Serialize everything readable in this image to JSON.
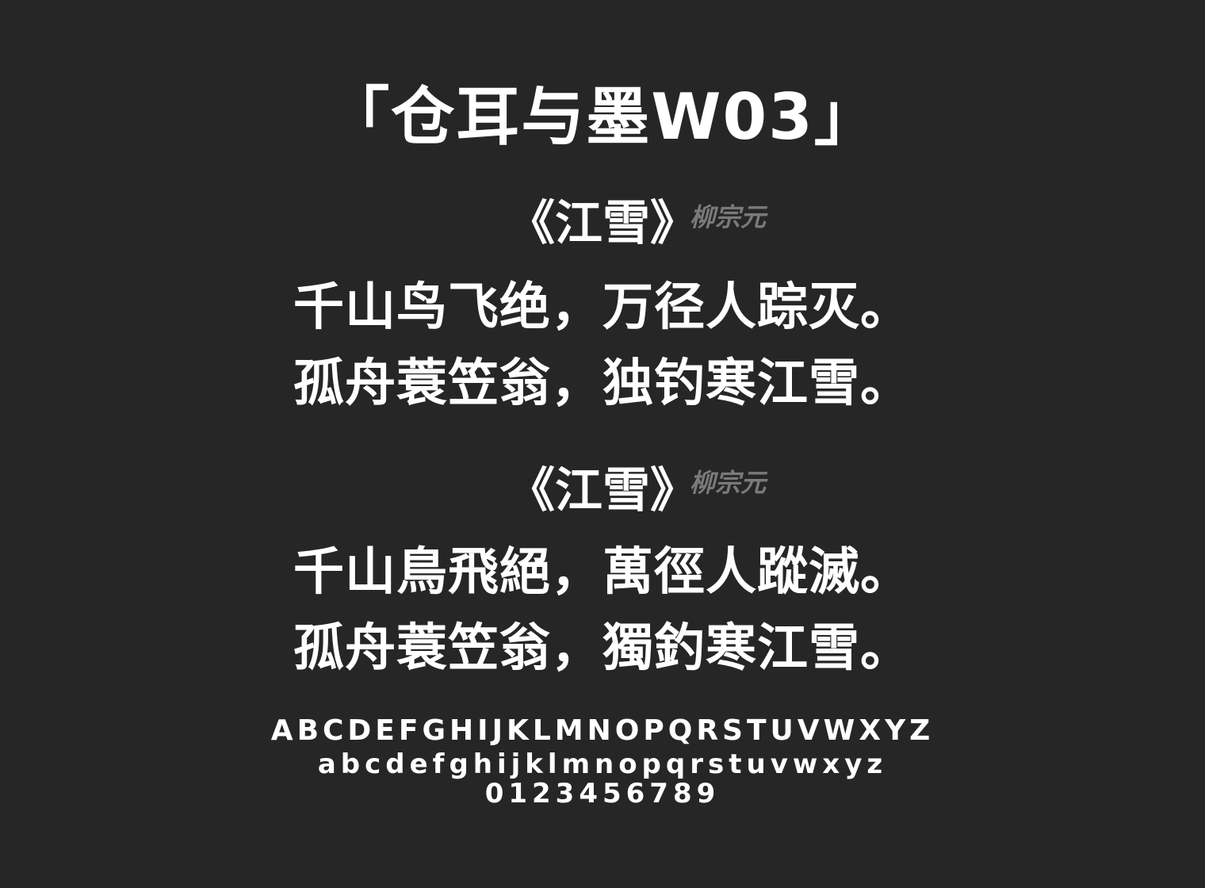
{
  "font_name": "「仓耳与墨W03」",
  "sections": [
    {
      "title": "《江雪》",
      "author": "柳宗元",
      "lines": [
        "千山鸟飞绝，万径人踪灭。",
        "孤舟蓑笠翁，独钓寒江雪。"
      ]
    },
    {
      "title": "《江雪》",
      "author": "柳宗元",
      "lines": [
        "千山鳥飛絕，萬徑人蹤滅。",
        "孤舟蓑笠翁，獨釣寒江雪。"
      ]
    }
  ],
  "glyph_samples": {
    "uppercase": "ABCDEFGHIJKLMNOPQRSTUVWXYZ",
    "lowercase": "abcdefghijklmnopqrstuvwxyz",
    "digits": "0123456789"
  },
  "colors": {
    "background": "#262626",
    "text": "#ffffff",
    "author": "#7a7a7a"
  }
}
